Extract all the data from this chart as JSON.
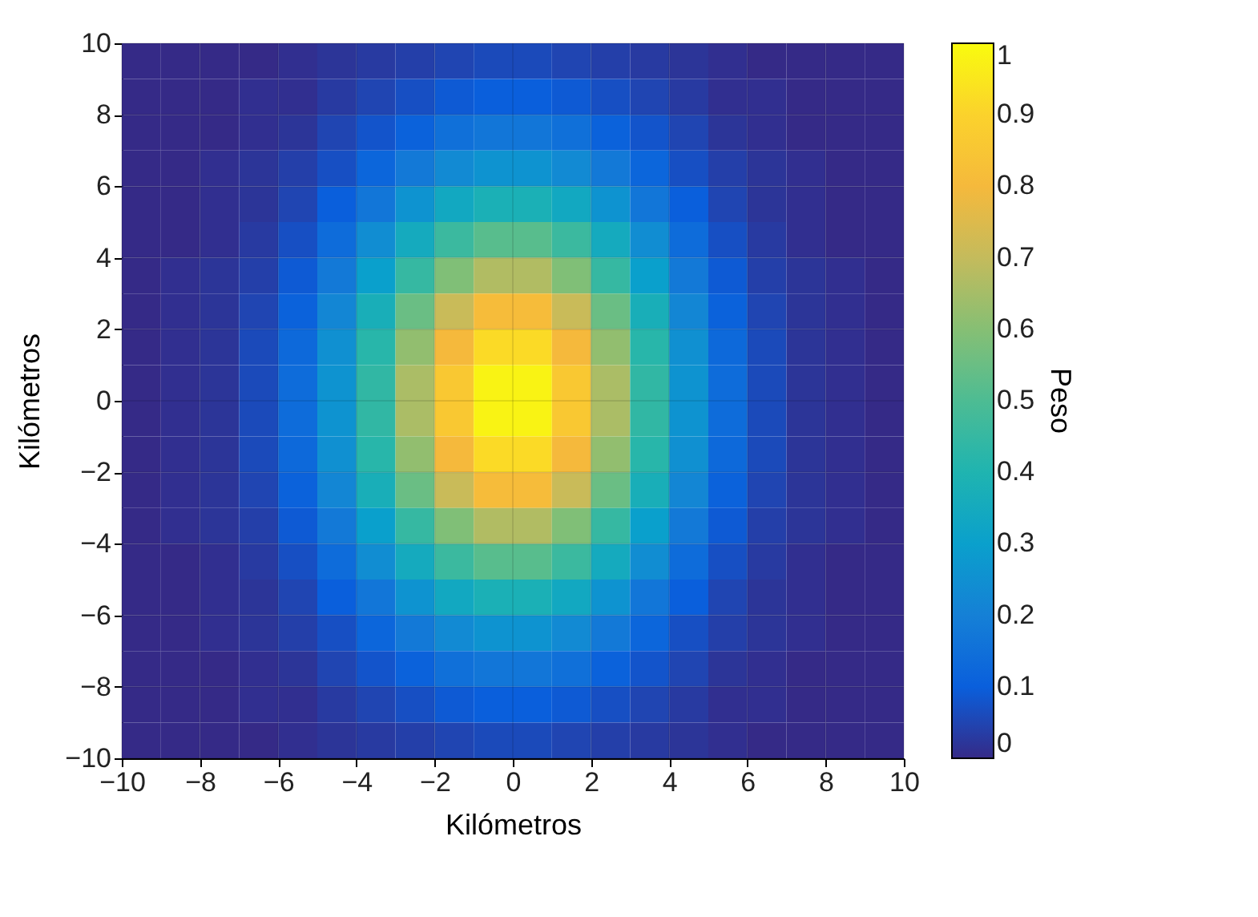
{
  "chart_data": {
    "type": "heatmap",
    "xlabel": "Kilómetros",
    "ylabel": "Kilómetros",
    "clabel": "Peso",
    "x": [
      -9.5,
      -8.5,
      -7.5,
      -6.5,
      -5.5,
      -4.5,
      -3.5,
      -2.5,
      -1.5,
      -0.5,
      0.5,
      1.5,
      2.5,
      3.5,
      4.5,
      5.5,
      6.5,
      7.5,
      8.5,
      9.5
    ],
    "y": [
      9.5,
      8.5,
      7.5,
      6.5,
      5.5,
      4.5,
      3.5,
      2.5,
      1.5,
      0.5,
      -0.5,
      -1.5,
      -2.5,
      -3.5,
      -4.5,
      -5.5,
      -6.5,
      -7.5,
      -8.5,
      -9.5
    ],
    "xlim": [
      -10,
      10
    ],
    "ylim": [
      -10,
      10
    ],
    "xticks": [
      -10,
      -8,
      -6,
      -4,
      -2,
      0,
      2,
      4,
      6,
      8,
      10
    ],
    "yticks": [
      -10,
      -8,
      -6,
      -4,
      -2,
      0,
      2,
      4,
      6,
      8,
      10
    ],
    "clim": [
      0,
      1
    ],
    "cticks": [
      0,
      0.1,
      0.2,
      0.3,
      0.4,
      0.5,
      0.6,
      0.7,
      0.8,
      0.9,
      1
    ],
    "grid": true,
    "cells": [
      [
        0,
        0,
        0,
        0,
        0.01,
        0.02,
        0.03,
        0.04,
        0.05,
        0.06,
        0.06,
        0.05,
        0.04,
        0.03,
        0.02,
        0.01,
        0,
        0,
        0,
        0
      ],
      [
        0,
        0,
        0,
        0.01,
        0.01,
        0.03,
        0.05,
        0.07,
        0.09,
        0.1,
        0.1,
        0.09,
        0.07,
        0.05,
        0.03,
        0.01,
        0.01,
        0,
        0,
        0
      ],
      [
        0,
        0,
        0,
        0.01,
        0.02,
        0.05,
        0.08,
        0.11,
        0.15,
        0.17,
        0.17,
        0.15,
        0.11,
        0.08,
        0.05,
        0.02,
        0.01,
        0,
        0,
        0
      ],
      [
        0,
        0,
        0.01,
        0.02,
        0.04,
        0.07,
        0.12,
        0.18,
        0.23,
        0.26,
        0.26,
        0.23,
        0.18,
        0.12,
        0.07,
        0.04,
        0.02,
        0.01,
        0,
        0
      ],
      [
        0,
        0,
        0.01,
        0.02,
        0.05,
        0.1,
        0.17,
        0.26,
        0.34,
        0.38,
        0.38,
        0.34,
        0.26,
        0.17,
        0.1,
        0.05,
        0.02,
        0.01,
        0,
        0
      ],
      [
        0,
        0,
        0.01,
        0.03,
        0.07,
        0.14,
        0.24,
        0.35,
        0.46,
        0.52,
        0.52,
        0.46,
        0.35,
        0.24,
        0.14,
        0.07,
        0.03,
        0.01,
        0,
        0
      ],
      [
        0,
        0.01,
        0.02,
        0.04,
        0.09,
        0.18,
        0.3,
        0.45,
        0.59,
        0.67,
        0.67,
        0.59,
        0.45,
        0.3,
        0.18,
        0.09,
        0.04,
        0.02,
        0.01,
        0
      ],
      [
        0,
        0.01,
        0.02,
        0.05,
        0.11,
        0.22,
        0.37,
        0.55,
        0.71,
        0.81,
        0.81,
        0.71,
        0.55,
        0.37,
        0.22,
        0.11,
        0.05,
        0.02,
        0.01,
        0
      ],
      [
        0,
        0.01,
        0.02,
        0.06,
        0.13,
        0.25,
        0.42,
        0.62,
        0.8,
        0.92,
        0.92,
        0.8,
        0.62,
        0.42,
        0.25,
        0.13,
        0.06,
        0.02,
        0.01,
        0
      ],
      [
        0,
        0.01,
        0.02,
        0.06,
        0.14,
        0.26,
        0.44,
        0.66,
        0.86,
        0.98,
        0.98,
        0.86,
        0.66,
        0.44,
        0.26,
        0.14,
        0.06,
        0.02,
        0.01,
        0
      ],
      [
        0,
        0.01,
        0.02,
        0.06,
        0.14,
        0.26,
        0.44,
        0.66,
        0.86,
        0.98,
        0.98,
        0.86,
        0.66,
        0.44,
        0.26,
        0.14,
        0.06,
        0.02,
        0.01,
        0
      ],
      [
        0,
        0.01,
        0.02,
        0.06,
        0.13,
        0.25,
        0.42,
        0.62,
        0.8,
        0.92,
        0.92,
        0.8,
        0.62,
        0.42,
        0.25,
        0.13,
        0.06,
        0.02,
        0.01,
        0
      ],
      [
        0,
        0.01,
        0.02,
        0.05,
        0.11,
        0.22,
        0.37,
        0.55,
        0.71,
        0.81,
        0.81,
        0.71,
        0.55,
        0.37,
        0.22,
        0.11,
        0.05,
        0.02,
        0.01,
        0
      ],
      [
        0,
        0.01,
        0.02,
        0.04,
        0.09,
        0.18,
        0.3,
        0.45,
        0.59,
        0.67,
        0.67,
        0.59,
        0.45,
        0.3,
        0.18,
        0.09,
        0.04,
        0.02,
        0.01,
        0
      ],
      [
        0,
        0,
        0.01,
        0.03,
        0.07,
        0.14,
        0.24,
        0.35,
        0.46,
        0.52,
        0.52,
        0.46,
        0.35,
        0.24,
        0.14,
        0.07,
        0.03,
        0.01,
        0,
        0
      ],
      [
        0,
        0,
        0.01,
        0.02,
        0.05,
        0.1,
        0.17,
        0.26,
        0.34,
        0.38,
        0.38,
        0.34,
        0.26,
        0.17,
        0.1,
        0.05,
        0.02,
        0.01,
        0,
        0
      ],
      [
        0,
        0,
        0.01,
        0.02,
        0.04,
        0.07,
        0.12,
        0.18,
        0.23,
        0.26,
        0.26,
        0.23,
        0.18,
        0.12,
        0.07,
        0.04,
        0.02,
        0.01,
        0,
        0
      ],
      [
        0,
        0,
        0,
        0.01,
        0.02,
        0.05,
        0.08,
        0.11,
        0.15,
        0.17,
        0.17,
        0.15,
        0.11,
        0.08,
        0.05,
        0.02,
        0.01,
        0,
        0,
        0
      ],
      [
        0,
        0,
        0,
        0.01,
        0.01,
        0.03,
        0.05,
        0.07,
        0.09,
        0.1,
        0.1,
        0.09,
        0.07,
        0.05,
        0.03,
        0.01,
        0.01,
        0,
        0,
        0
      ],
      [
        0,
        0,
        0,
        0,
        0.01,
        0.02,
        0.03,
        0.04,
        0.05,
        0.06,
        0.06,
        0.05,
        0.04,
        0.03,
        0.02,
        0.01,
        0,
        0,
        0,
        0
      ]
    ]
  }
}
